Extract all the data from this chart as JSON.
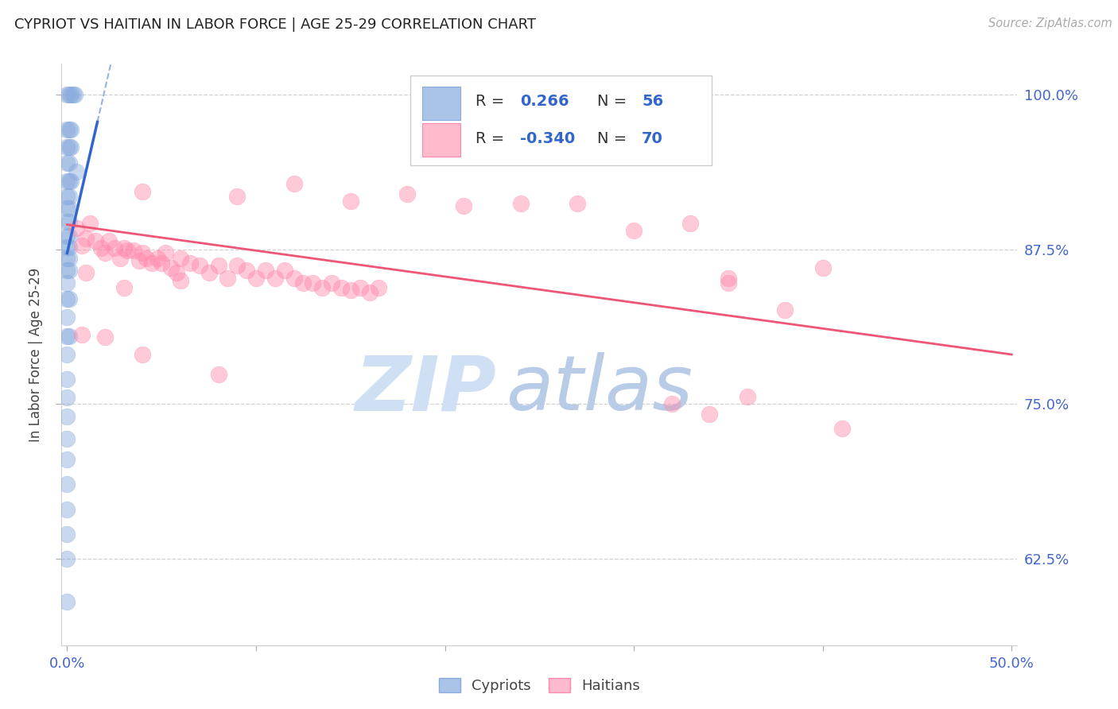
{
  "title": "CYPRIOT VS HAITIAN IN LABOR FORCE | AGE 25-29 CORRELATION CHART",
  "source_text": "Source: ZipAtlas.com",
  "ylabel": "In Labor Force | Age 25-29",
  "xlim": [
    -0.003,
    0.503
  ],
  "ylim": [
    0.555,
    1.025
  ],
  "ytick_positions": [
    0.625,
    0.75,
    0.875,
    1.0
  ],
  "ytick_labels": [
    "62.5%",
    "75.0%",
    "87.5%",
    "100.0%"
  ],
  "xtick_positions": [
    0.0,
    0.1,
    0.2,
    0.3,
    0.4,
    0.5
  ],
  "xtick_labels": [
    "0.0%",
    "",
    "",
    "",
    "",
    "50.0%"
  ],
  "cypriot_color": "#88aadd",
  "haitian_color": "#ff88aa",
  "blue_line_color": "#3366cc",
  "pink_line_color": "#ee5577",
  "tick_label_color": "#4466cc",
  "title_color": "#222222",
  "source_color": "#aaaaaa",
  "grid_color": "#cccccc",
  "background_color": "#ffffff",
  "cypriot_R": "0.266",
  "cypriot_N": "56",
  "haitian_R": "-0.340",
  "haitian_N": "70",
  "cypriot_points": [
    [
      0.0,
      1.0
    ],
    [
      0.001,
      1.0
    ],
    [
      0.002,
      1.0
    ],
    [
      0.003,
      1.0
    ],
    [
      0.004,
      1.0
    ],
    [
      0.0,
      0.972
    ],
    [
      0.001,
      0.972
    ],
    [
      0.002,
      0.972
    ],
    [
      0.0,
      0.958
    ],
    [
      0.001,
      0.958
    ],
    [
      0.002,
      0.958
    ],
    [
      0.0,
      0.945
    ],
    [
      0.001,
      0.945
    ],
    [
      0.005,
      0.938
    ],
    [
      0.0,
      0.93
    ],
    [
      0.001,
      0.93
    ],
    [
      0.002,
      0.93
    ],
    [
      0.0,
      0.918
    ],
    [
      0.001,
      0.918
    ],
    [
      0.0,
      0.908
    ],
    [
      0.001,
      0.908
    ],
    [
      0.0,
      0.897
    ],
    [
      0.001,
      0.897
    ],
    [
      0.0,
      0.886
    ],
    [
      0.001,
      0.886
    ],
    [
      0.0,
      0.877
    ],
    [
      0.001,
      0.877
    ],
    [
      0.0,
      0.868
    ],
    [
      0.001,
      0.868
    ],
    [
      0.0,
      0.858
    ],
    [
      0.001,
      0.858
    ],
    [
      0.0,
      0.848
    ],
    [
      0.0,
      0.835
    ],
    [
      0.001,
      0.835
    ],
    [
      0.0,
      0.82
    ],
    [
      0.0,
      0.805
    ],
    [
      0.001,
      0.805
    ],
    [
      0.0,
      0.79
    ],
    [
      0.0,
      0.77
    ],
    [
      0.0,
      0.755
    ],
    [
      0.0,
      0.74
    ],
    [
      0.0,
      0.722
    ],
    [
      0.0,
      0.705
    ],
    [
      0.0,
      0.685
    ],
    [
      0.0,
      0.665
    ],
    [
      0.0,
      0.645
    ],
    [
      0.0,
      0.625
    ],
    [
      0.0,
      0.59
    ]
  ],
  "haitian_points": [
    [
      0.005,
      0.892
    ],
    [
      0.008,
      0.878
    ],
    [
      0.01,
      0.884
    ],
    [
      0.012,
      0.896
    ],
    [
      0.015,
      0.882
    ],
    [
      0.018,
      0.876
    ],
    [
      0.02,
      0.872
    ],
    [
      0.022,
      0.882
    ],
    [
      0.025,
      0.876
    ],
    [
      0.028,
      0.868
    ],
    [
      0.03,
      0.876
    ],
    [
      0.032,
      0.874
    ],
    [
      0.035,
      0.874
    ],
    [
      0.038,
      0.866
    ],
    [
      0.04,
      0.872
    ],
    [
      0.042,
      0.868
    ],
    [
      0.045,
      0.864
    ],
    [
      0.048,
      0.868
    ],
    [
      0.05,
      0.864
    ],
    [
      0.052,
      0.872
    ],
    [
      0.055,
      0.86
    ],
    [
      0.058,
      0.856
    ],
    [
      0.06,
      0.868
    ],
    [
      0.065,
      0.864
    ],
    [
      0.07,
      0.862
    ],
    [
      0.075,
      0.856
    ],
    [
      0.08,
      0.862
    ],
    [
      0.085,
      0.852
    ],
    [
      0.09,
      0.862
    ],
    [
      0.095,
      0.858
    ],
    [
      0.1,
      0.852
    ],
    [
      0.105,
      0.858
    ],
    [
      0.11,
      0.852
    ],
    [
      0.115,
      0.858
    ],
    [
      0.12,
      0.852
    ],
    [
      0.125,
      0.848
    ],
    [
      0.13,
      0.848
    ],
    [
      0.135,
      0.844
    ],
    [
      0.14,
      0.848
    ],
    [
      0.145,
      0.844
    ],
    [
      0.15,
      0.842
    ],
    [
      0.155,
      0.844
    ],
    [
      0.16,
      0.84
    ],
    [
      0.165,
      0.844
    ],
    [
      0.04,
      0.922
    ],
    [
      0.09,
      0.918
    ],
    [
      0.12,
      0.928
    ],
    [
      0.15,
      0.914
    ],
    [
      0.18,
      0.92
    ],
    [
      0.21,
      0.91
    ],
    [
      0.24,
      0.912
    ],
    [
      0.01,
      0.856
    ],
    [
      0.03,
      0.844
    ],
    [
      0.06,
      0.85
    ],
    [
      0.008,
      0.806
    ],
    [
      0.02,
      0.804
    ],
    [
      0.04,
      0.79
    ],
    [
      0.08,
      0.774
    ],
    [
      0.27,
      0.912
    ],
    [
      0.3,
      0.89
    ],
    [
      0.33,
      0.896
    ],
    [
      0.35,
      0.852
    ],
    [
      0.4,
      0.86
    ],
    [
      0.32,
      0.75
    ],
    [
      0.34,
      0.742
    ],
    [
      0.35,
      0.848
    ],
    [
      0.38,
      0.826
    ],
    [
      0.36,
      0.756
    ],
    [
      0.41,
      0.73
    ]
  ],
  "cyp_line_x": [
    0.0,
    0.016
  ],
  "cyp_line_y": [
    0.872,
    0.978
  ],
  "hai_line_x": [
    0.0,
    0.5
  ],
  "hai_line_y": [
    0.895,
    0.79
  ]
}
